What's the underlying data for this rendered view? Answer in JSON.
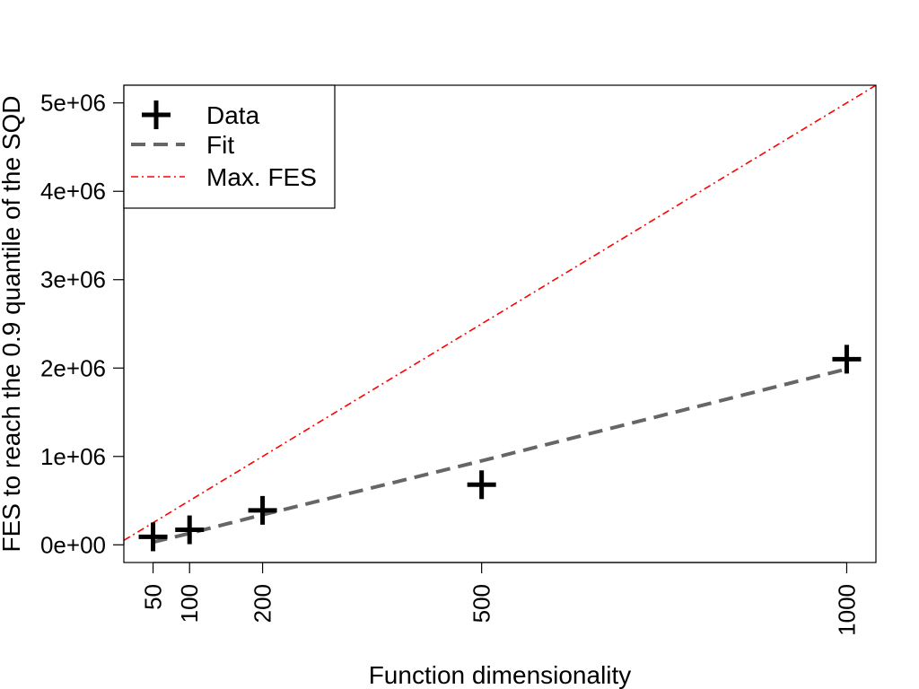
{
  "chart_data": {
    "type": "scatter",
    "xlabel": "Function dimensionality",
    "ylabel": "FES to reach the 0.9 quantile of the SQD",
    "x_ticks": [
      50,
      100,
      200,
      500,
      1000
    ],
    "x_tick_labels": [
      "50",
      "100",
      "200",
      "500",
      "1000"
    ],
    "y_ticks": [
      0,
      1000000,
      2000000,
      3000000,
      4000000,
      5000000
    ],
    "y_tick_labels": [
      "0e+00",
      "1e+06",
      "2e+06",
      "3e+06",
      "4e+06",
      "5e+06"
    ],
    "xlim": [
      10,
      1040
    ],
    "ylim": [
      -200000,
      5200000
    ],
    "grid": false,
    "legend_position": "top-left",
    "series": [
      {
        "name": "Data",
        "style": "points-plus",
        "color": "#000000",
        "x": [
          50,
          100,
          200,
          500,
          1000
        ],
        "y": [
          90000,
          170000,
          390000,
          680000,
          2100000
        ]
      },
      {
        "name": "Fit",
        "style": "dashed-line",
        "color": "#666666",
        "x": [
          50,
          100,
          200,
          500,
          1000
        ],
        "y": [
          30000,
          130000,
          340000,
          950000,
          1990000
        ]
      },
      {
        "name": "Max. FES",
        "style": "dotdash-line",
        "color": "#ff0000",
        "x": [
          10,
          1040
        ],
        "y": [
          50000,
          5200000
        ]
      }
    ]
  }
}
